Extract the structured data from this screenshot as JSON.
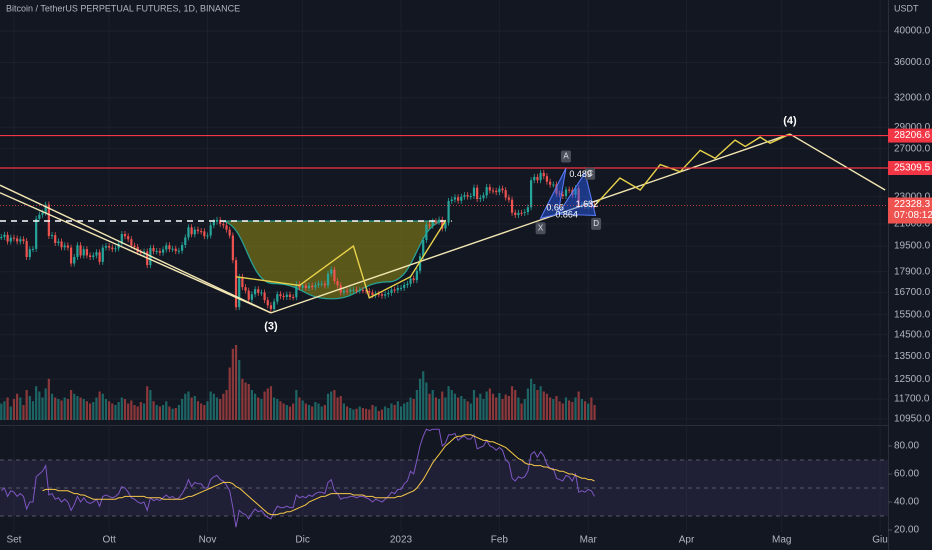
{
  "chart_data": {
    "type": "candlestick",
    "title": "Bitcoin / TetherUS PERPETUAL FUTURES, 1D, BINANCE",
    "currency_label": "USDT",
    "up_color": "#26a69a",
    "down_color": "#ef5350",
    "log_scale": true,
    "grid": true,
    "xlim": [
      -4.4,
      275.5
    ],
    "xticks": [
      {
        "value": 0,
        "label": "Set"
      },
      {
        "value": 30,
        "label": "Ott"
      },
      {
        "value": 61,
        "label": "Nov"
      },
      {
        "value": 91,
        "label": "Dic"
      },
      {
        "value": 122,
        "label": "2023"
      },
      {
        "value": 153,
        "label": "Feb"
      },
      {
        "value": 181,
        "label": "Mar"
      },
      {
        "value": 212,
        "label": "Apr"
      },
      {
        "value": 242,
        "label": "Mag"
      },
      {
        "value": 273,
        "label": "Giu"
      }
    ],
    "ylim": [
      10726,
      44365
    ],
    "yticks": [
      {
        "value": 40000,
        "label": "40000.0"
      },
      {
        "value": 36000,
        "label": "36000.0"
      },
      {
        "value": 32000,
        "label": "32000.0"
      },
      {
        "value": 29000,
        "label": "29000.0"
      },
      {
        "value": 27000,
        "label": "27000.0"
      },
      {
        "value": 23000,
        "label": "23000.0"
      },
      {
        "value": 21000,
        "label": "21000.0"
      },
      {
        "value": 19500,
        "label": "19500.0"
      },
      {
        "value": 17900,
        "label": "17900.0"
      },
      {
        "value": 16700,
        "label": "16700.0"
      },
      {
        "value": 15500,
        "label": "15500.0"
      },
      {
        "value": 14500,
        "label": "14500.0"
      },
      {
        "value": 13500,
        "label": "13500.0"
      },
      {
        "value": 12500,
        "label": "12500.0"
      },
      {
        "value": 11700,
        "label": "11700.0"
      },
      {
        "value": 10950,
        "label": "10950.0"
      }
    ],
    "x": [
      -4,
      -3,
      -2,
      -1,
      0,
      1,
      2,
      3,
      4,
      5,
      6,
      7,
      8,
      9,
      10,
      11,
      12,
      13,
      14,
      15,
      16,
      17,
      18,
      19,
      20,
      21,
      22,
      23,
      24,
      25,
      26,
      27,
      28,
      29,
      30,
      31,
      32,
      33,
      34,
      35,
      36,
      37,
      38,
      39,
      40,
      41,
      42,
      43,
      44,
      45,
      46,
      47,
      48,
      49,
      50,
      51,
      52,
      53,
      54,
      55,
      56,
      57,
      58,
      59,
      60,
      61,
      62,
      63,
      64,
      65,
      66,
      67,
      68,
      69,
      70,
      71,
      72,
      73,
      74,
      75,
      76,
      77,
      78,
      79,
      80,
      81,
      82,
      83,
      84,
      85,
      86,
      87,
      88,
      89,
      90,
      91,
      92,
      93,
      94,
      95,
      96,
      97,
      98,
      99,
      100,
      101,
      102,
      103,
      104,
      105,
      106,
      107,
      108,
      109,
      110,
      111,
      112,
      113,
      114,
      115,
      116,
      117,
      118,
      119,
      120,
      121,
      122,
      123,
      124,
      125,
      126,
      127,
      128,
      129,
      130,
      131,
      132,
      133,
      134,
      135,
      136,
      137,
      138,
      139,
      140,
      141,
      142,
      143,
      144,
      145,
      146,
      147,
      148,
      149,
      150,
      151,
      152,
      153,
      154,
      155,
      156,
      157,
      158,
      159,
      160,
      161,
      162,
      163,
      164,
      165,
      166,
      167,
      168,
      169,
      170,
      171,
      172,
      173,
      174,
      175,
      176,
      177,
      178,
      179,
      180,
      181,
      182,
      183
    ],
    "close": [
      20100,
      20250,
      19800,
      20050,
      20000,
      19800,
      19950,
      19830,
      18800,
      19290,
      19320,
      21360,
      21650,
      21800,
      22400,
      20170,
      20230,
      19700,
      19800,
      19420,
      19540,
      19400,
      18400,
      18800,
      19550,
      18900,
      19300,
      18900,
      18800,
      18900,
      19100,
      18500,
      19400,
      19500,
      19400,
      19300,
      19350,
      19650,
      20300,
      20150,
      19950,
      19530,
      19440,
      19120,
      19050,
      19150,
      18300,
      19380,
      19160,
      19180,
      19070,
      19280,
      19550,
      19300,
      19330,
      19170,
      19200,
      19570,
      20070,
      20760,
      20280,
      20600,
      20500,
      20480,
      20150,
      20200,
      20900,
      21150,
      21280,
      21000,
      20900,
      20600,
      20200,
      18600,
      15900,
      17600,
      17000,
      16800,
      16300,
      16600,
      16880,
      16680,
      16700,
      16280,
      16000,
      15800,
      16200,
      16600,
      16500,
      16450,
      16580,
      16450,
      16440,
      17170,
      16980,
      17100,
      16950,
      17080,
      17000,
      17120,
      17200,
      17200,
      17100,
      17780,
      18030,
      17350,
      17100,
      16700,
      16800,
      16750,
      16850,
      16850,
      16800,
      16830,
      16820,
      16780,
      16700,
      16550,
      16630,
      16600,
      16520,
      16600,
      16680,
      16860,
      16830,
      16950,
      16960,
      17120,
      17190,
      17500,
      17400,
      17950,
      18850,
      19900,
      20950,
      20870,
      21180,
      21150,
      21300,
      20680,
      21080,
      22670,
      22780,
      22950,
      22690,
      22990,
      23120,
      23010,
      23050,
      23700,
      22820,
      22900,
      23100,
      23750,
      23480,
      23450,
      23350,
      23630,
      23500,
      22930,
      22770,
      21800,
      21630,
      21790,
      21780,
      21850,
      22200,
      24300,
      24570,
      24300,
      24900,
      24630,
      24180,
      23940,
      23950,
      23240,
      23170,
      23050,
      23550,
      23500,
      23140,
      23650,
      22350,
      22400,
      22300,
      22450,
      22350,
      22328.3
    ],
    "volume": [
      22,
      25,
      30,
      18,
      28,
      35,
      30,
      20,
      40,
      32,
      25,
      45,
      38,
      30,
      42,
      55,
      35,
      30,
      28,
      26,
      30,
      28,
      40,
      35,
      32,
      30,
      28,
      25,
      22,
      24,
      30,
      38,
      35,
      28,
      25,
      22,
      20,
      24,
      30,
      28,
      22,
      26,
      20,
      18,
      24,
      22,
      45,
      40,
      25,
      20,
      18,
      20,
      25,
      18,
      15,
      16,
      20,
      28,
      35,
      38,
      30,
      32,
      25,
      22,
      20,
      25,
      38,
      35,
      30,
      28,
      35,
      40,
      70,
      95,
      100,
      80,
      55,
      50,
      48,
      40,
      35,
      30,
      28,
      38,
      42,
      45,
      30,
      28,
      25,
      22,
      20,
      18,
      22,
      40,
      30,
      26,
      22,
      20,
      18,
      24,
      22,
      18,
      20,
      35,
      38,
      40,
      30,
      32,
      22,
      18,
      16,
      14,
      15,
      18,
      16,
      15,
      14,
      20,
      18,
      12,
      14,
      18,
      16,
      22,
      20,
      25,
      18,
      22,
      24,
      30,
      28,
      40,
      55,
      65,
      50,
      35,
      40,
      30,
      28,
      38,
      30,
      45,
      40,
      35,
      30,
      32,
      28,
      25,
      22,
      40,
      30,
      35,
      28,
      38,
      42,
      35,
      30,
      36,
      28,
      34,
      32,
      45,
      40,
      30,
      22,
      28,
      42,
      55,
      48,
      40,
      45,
      38,
      35,
      30,
      28,
      32,
      25,
      22,
      30,
      26,
      24,
      30,
      38,
      28,
      25,
      22,
      30,
      20
    ],
    "levels": [
      28206.6,
      25309.5
    ],
    "level_color": "#f23645",
    "countdown": "07:08:12",
    "drawings": [
      {
        "color": "#f3e7b3",
        "points": [
          [
            -4.4,
            23900
          ],
          [
            81,
            15600
          ]
        ]
      },
      {
        "color": "#f3e7b3",
        "points": [
          [
            -4.4,
            23300
          ],
          [
            81,
            15600
          ]
        ]
      },
      {
        "color": "#f3e7b3",
        "points": [
          [
            81,
            15600
          ],
          [
            244.6,
            28350
          ]
        ]
      },
      {
        "color": "#f3e7b3",
        "points": [
          [
            244.6,
            28350
          ],
          [
            274.6,
            23520
          ]
        ]
      },
      {
        "color": "#e8d24a",
        "points": [
          [
            183,
            22330
          ],
          [
            184.7,
            22750
          ],
          [
            191,
            24480
          ],
          [
            197.4,
            23520
          ],
          [
            203.7,
            25600
          ],
          [
            210,
            25000
          ],
          [
            216.3,
            26850
          ],
          [
            221,
            26150
          ],
          [
            227.3,
            27780
          ],
          [
            230.5,
            27200
          ],
          [
            235.2,
            28060
          ],
          [
            238.3,
            27500
          ],
          [
            244.6,
            28350
          ]
        ]
      },
      {
        "color": "#e8d24a",
        "points": [
          [
            70,
            17600
          ],
          [
            90,
            17100
          ],
          [
            107,
            19500
          ],
          [
            112,
            16400
          ],
          [
            125,
            17600
          ],
          [
            136,
            21200
          ]
        ]
      }
    ],
    "dashed_level": {
      "color": "#ffffff",
      "points": [
        [
          -4.4,
          21200
        ],
        [
          138,
          21200
        ]
      ]
    },
    "cup": {
      "fill": "rgba(150,140,20,0.55)",
      "stroke": "#26a69a",
      "points": [
        [
          65,
          21200
        ],
        [
          82,
          17200
        ],
        [
          100,
          16350
        ],
        [
          118,
          17300
        ],
        [
          136,
          21200
        ]
      ]
    },
    "harmonic": {
      "fill": "rgba(41,98,255,0.45)",
      "stroke": "#5b7cfa",
      "triangles": [
        [
          [
            166,
            21400
          ],
          [
            174,
            25300
          ],
          [
            171.5,
            21700
          ]
        ],
        [
          [
            171.5,
            21700
          ],
          [
            180,
            24900
          ],
          [
            183.3,
            21600
          ]
        ]
      ]
    },
    "annotations": [
      {
        "text": "(3)",
        "x": 81,
        "y": 14900,
        "box": false
      },
      {
        "text": "(4)",
        "x": 244.6,
        "y": 29600,
        "box": false
      },
      {
        "text": "A",
        "x": 174,
        "y": 26300,
        "box": true
      },
      {
        "text": "X",
        "x": 166,
        "y": 20700,
        "box": true
      },
      {
        "text": "C",
        "x": 181.6,
        "y": 24830,
        "box": true
      },
      {
        "text": "D",
        "x": 183.5,
        "y": 21000,
        "box": true
      },
      {
        "text": "0.489",
        "x": 178.6,
        "y": 24740,
        "box": false
      },
      {
        "text": "0.66",
        "x": 170.6,
        "y": 22150,
        "box": false
      },
      {
        "text": "0.864",
        "x": 174.2,
        "y": 21620,
        "box": false
      },
      {
        "text": "1.632",
        "x": 180.6,
        "y": 22380,
        "box": false
      }
    ],
    "rsi": {
      "ylim": [
        18.6,
        94.3
      ],
      "yticks": [
        {
          "value": 80,
          "label": "80.00"
        },
        {
          "value": 60,
          "label": "60.00"
        },
        {
          "value": 40,
          "label": "40.00"
        },
        {
          "value": 20,
          "label": "20.00"
        }
      ],
      "levels": [
        70,
        50,
        30
      ],
      "band_color": "rgba(126,87,194,0.12)",
      "color": "#7e57c2",
      "ma_color": "#f7c948",
      "values": [
        48,
        50,
        44,
        48,
        47,
        44,
        46,
        44,
        35,
        40,
        40,
        58,
        60,
        62,
        66,
        45,
        46,
        42,
        43,
        40,
        42,
        40,
        34,
        38,
        44,
        40,
        43,
        40,
        39,
        40,
        42,
        37,
        44,
        45,
        44,
        43,
        44,
        46,
        51,
        50,
        47,
        43,
        42,
        40,
        39,
        40,
        34,
        43,
        41,
        42,
        41,
        43,
        45,
        43,
        44,
        42,
        43,
        46,
        50,
        56,
        51,
        54,
        53,
        53,
        50,
        50,
        56,
        58,
        59,
        56,
        55,
        52,
        48,
        36,
        22,
        34,
        32,
        31,
        28,
        32,
        35,
        33,
        34,
        31,
        29,
        28,
        33,
        37,
        36,
        36,
        37,
        36,
        36,
        45,
        43,
        44,
        43,
        45,
        44,
        46,
        47,
        47,
        46,
        54,
        56,
        48,
        46,
        42,
        43,
        43,
        44,
        44,
        43,
        44,
        44,
        43,
        42,
        40,
        42,
        41,
        40,
        42,
        44,
        47,
        46,
        49,
        49,
        53,
        55,
        62,
        60,
        70,
        80,
        87,
        92,
        91,
        92,
        92,
        92,
        80,
        82,
        88,
        88,
        89,
        84,
        86,
        87,
        85,
        85,
        88,
        78,
        79,
        80,
        84,
        80,
        79,
        77,
        79,
        77,
        70,
        68,
        57,
        55,
        58,
        57,
        58,
        62,
        74,
        76,
        72,
        76,
        73,
        67,
        64,
        64,
        57,
        56,
        55,
        59,
        58,
        55,
        60,
        47,
        48,
        47,
        49,
        48,
        44
      ],
      "ma_values": [
        null,
        null,
        null,
        null,
        null,
        null,
        null,
        null,
        null,
        null,
        null,
        null,
        null,
        48,
        49,
        49,
        49,
        49,
        48,
        48,
        48,
        48,
        47,
        46,
        46,
        45,
        45,
        44,
        43,
        42,
        42,
        42,
        42,
        42,
        42,
        42,
        42,
        43,
        43,
        44,
        44,
        44,
        44,
        44,
        44,
        44,
        43,
        43,
        43,
        43,
        43,
        42,
        42,
        42,
        42,
        42,
        42,
        42,
        43,
        44,
        44,
        45,
        46,
        47,
        48,
        49,
        50,
        51,
        52,
        53,
        54,
        54,
        54,
        53,
        51,
        50,
        48,
        46,
        44,
        42,
        40,
        38,
        36,
        34,
        32,
        31,
        31,
        31,
        32,
        32,
        33,
        33,
        34,
        35,
        36,
        37,
        38,
        40,
        41,
        42,
        43,
        44,
        44,
        45,
        46,
        46,
        46,
        46,
        46,
        46,
        46,
        45,
        45,
        45,
        45,
        44,
        44,
        44,
        43,
        43,
        43,
        43,
        43,
        43,
        43,
        44,
        44,
        45,
        46,
        47,
        48,
        50,
        53,
        56,
        60,
        64,
        68,
        71,
        74,
        77,
        80,
        82,
        84,
        86,
        87,
        87,
        88,
        88,
        88,
        87,
        86,
        85,
        84,
        84,
        83,
        83,
        82,
        81,
        80,
        79,
        77,
        75,
        73,
        71,
        70,
        68,
        67,
        67,
        66,
        66,
        66,
        65,
        65,
        64,
        63,
        63,
        62,
        62,
        61,
        60,
        60,
        59,
        58,
        57,
        57,
        56,
        56,
        55
      ]
    }
  }
}
